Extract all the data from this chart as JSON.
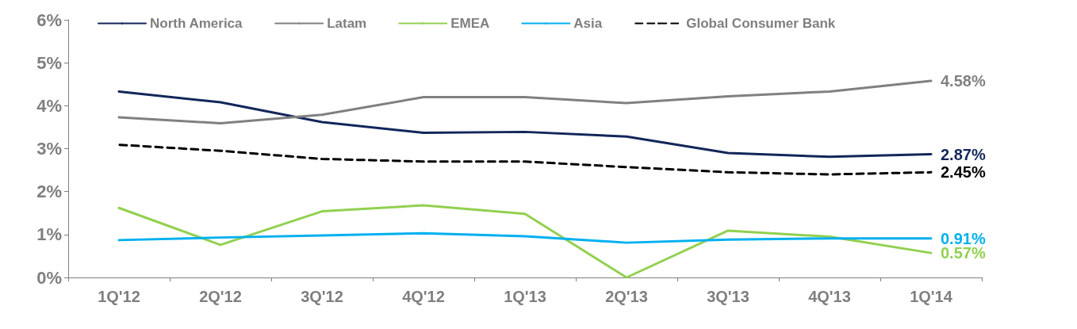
{
  "chart_data": {
    "type": "line",
    "categories": [
      "1Q'12",
      "2Q'12",
      "3Q'12",
      "4Q'12",
      "1Q'13",
      "2Q'13",
      "3Q'13",
      "4Q'13",
      "1Q'14"
    ],
    "ylim": [
      0,
      6
    ],
    "yticks": [
      {
        "value": 0,
        "label": "0%"
      },
      {
        "value": 1,
        "label": "1%"
      },
      {
        "value": 2,
        "label": "2%"
      },
      {
        "value": 3,
        "label": "3%"
      },
      {
        "value": 4,
        "label": "4%"
      },
      {
        "value": 5,
        "label": "5%"
      },
      {
        "value": 6,
        "label": "6%"
      }
    ],
    "grid": false,
    "legend": "top",
    "marker": "none",
    "series": [
      {
        "name": "North America",
        "color": "#12265a",
        "line_style": "solid",
        "values": [
          4.33,
          4.08,
          3.62,
          3.37,
          3.39,
          3.28,
          2.9,
          2.81,
          2.87
        ],
        "value_labels": [
          null,
          null,
          null,
          null,
          null,
          null,
          null,
          null,
          "2.87%"
        ]
      },
      {
        "name": "Latam",
        "color": "#808080",
        "line_style": "solid",
        "values": [
          3.73,
          3.59,
          3.79,
          4.2,
          4.2,
          4.06,
          4.22,
          4.33,
          4.58
        ],
        "value_labels": [
          null,
          null,
          null,
          null,
          null,
          null,
          null,
          null,
          "4.58%"
        ]
      },
      {
        "name": "EMEA",
        "color": "#92d050",
        "line_style": "solid",
        "values": [
          1.62,
          0.76,
          1.54,
          1.68,
          1.48,
          0,
          1.09,
          0.95,
          0.57
        ],
        "value_labels": [
          null,
          null,
          null,
          null,
          null,
          null,
          null,
          null,
          "0.57%"
        ]
      },
      {
        "name": "Asia",
        "color": "#00b0f0",
        "line_style": "solid",
        "values": [
          0.87,
          0.93,
          0.98,
          1.03,
          0.96,
          0.81,
          0.88,
          0.91,
          0.91
        ],
        "value_labels": [
          null,
          null,
          null,
          null,
          null,
          null,
          null,
          null,
          "0.91%"
        ]
      },
      {
        "name": "Global Consumer Bank",
        "color": "#000000",
        "line_style": "dashed",
        "values": [
          3.09,
          2.95,
          2.76,
          2.7,
          2.7,
          2.57,
          2.45,
          2.4,
          2.45
        ],
        "value_labels": [
          null,
          null,
          null,
          null,
          null,
          null,
          null,
          null,
          "2.45%"
        ]
      }
    ]
  }
}
